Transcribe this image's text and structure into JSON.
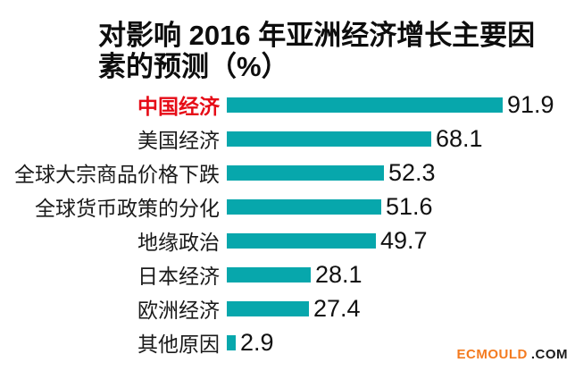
{
  "title": "对影响 2016 年亚洲经济增长主要因素的预测（%）",
  "watermark": {
    "brand": "ECMOULD",
    "suffix": ".COM"
  },
  "colors": {
    "bar": "#07a7ac",
    "highlight_label": "#e60c17",
    "label": "#1a1a1a",
    "title": "#0d0d0d",
    "watermark_brand": "#f47b20",
    "watermark_suffix": "#1a1a1a",
    "background": "#ffffff"
  },
  "chart_data": {
    "type": "bar",
    "orientation": "horizontal",
    "title": "对影响 2016 年亚洲经济增长主要因素的预测（%）",
    "xlabel": "",
    "ylabel": "",
    "xlim": [
      0,
      100
    ],
    "grid": false,
    "legend": false,
    "data_labels": true,
    "value_suffix": "%",
    "highlight_index": 0,
    "categories": [
      "中国经济",
      "美国经济",
      "全球大宗商品价格下跌",
      "全球货币政策的分化",
      "地缘政治",
      "日本经济",
      "欧洲经济",
      "其他原因"
    ],
    "values": [
      91.9,
      68.1,
      52.3,
      51.6,
      49.7,
      28.1,
      27.4,
      2.9
    ]
  }
}
